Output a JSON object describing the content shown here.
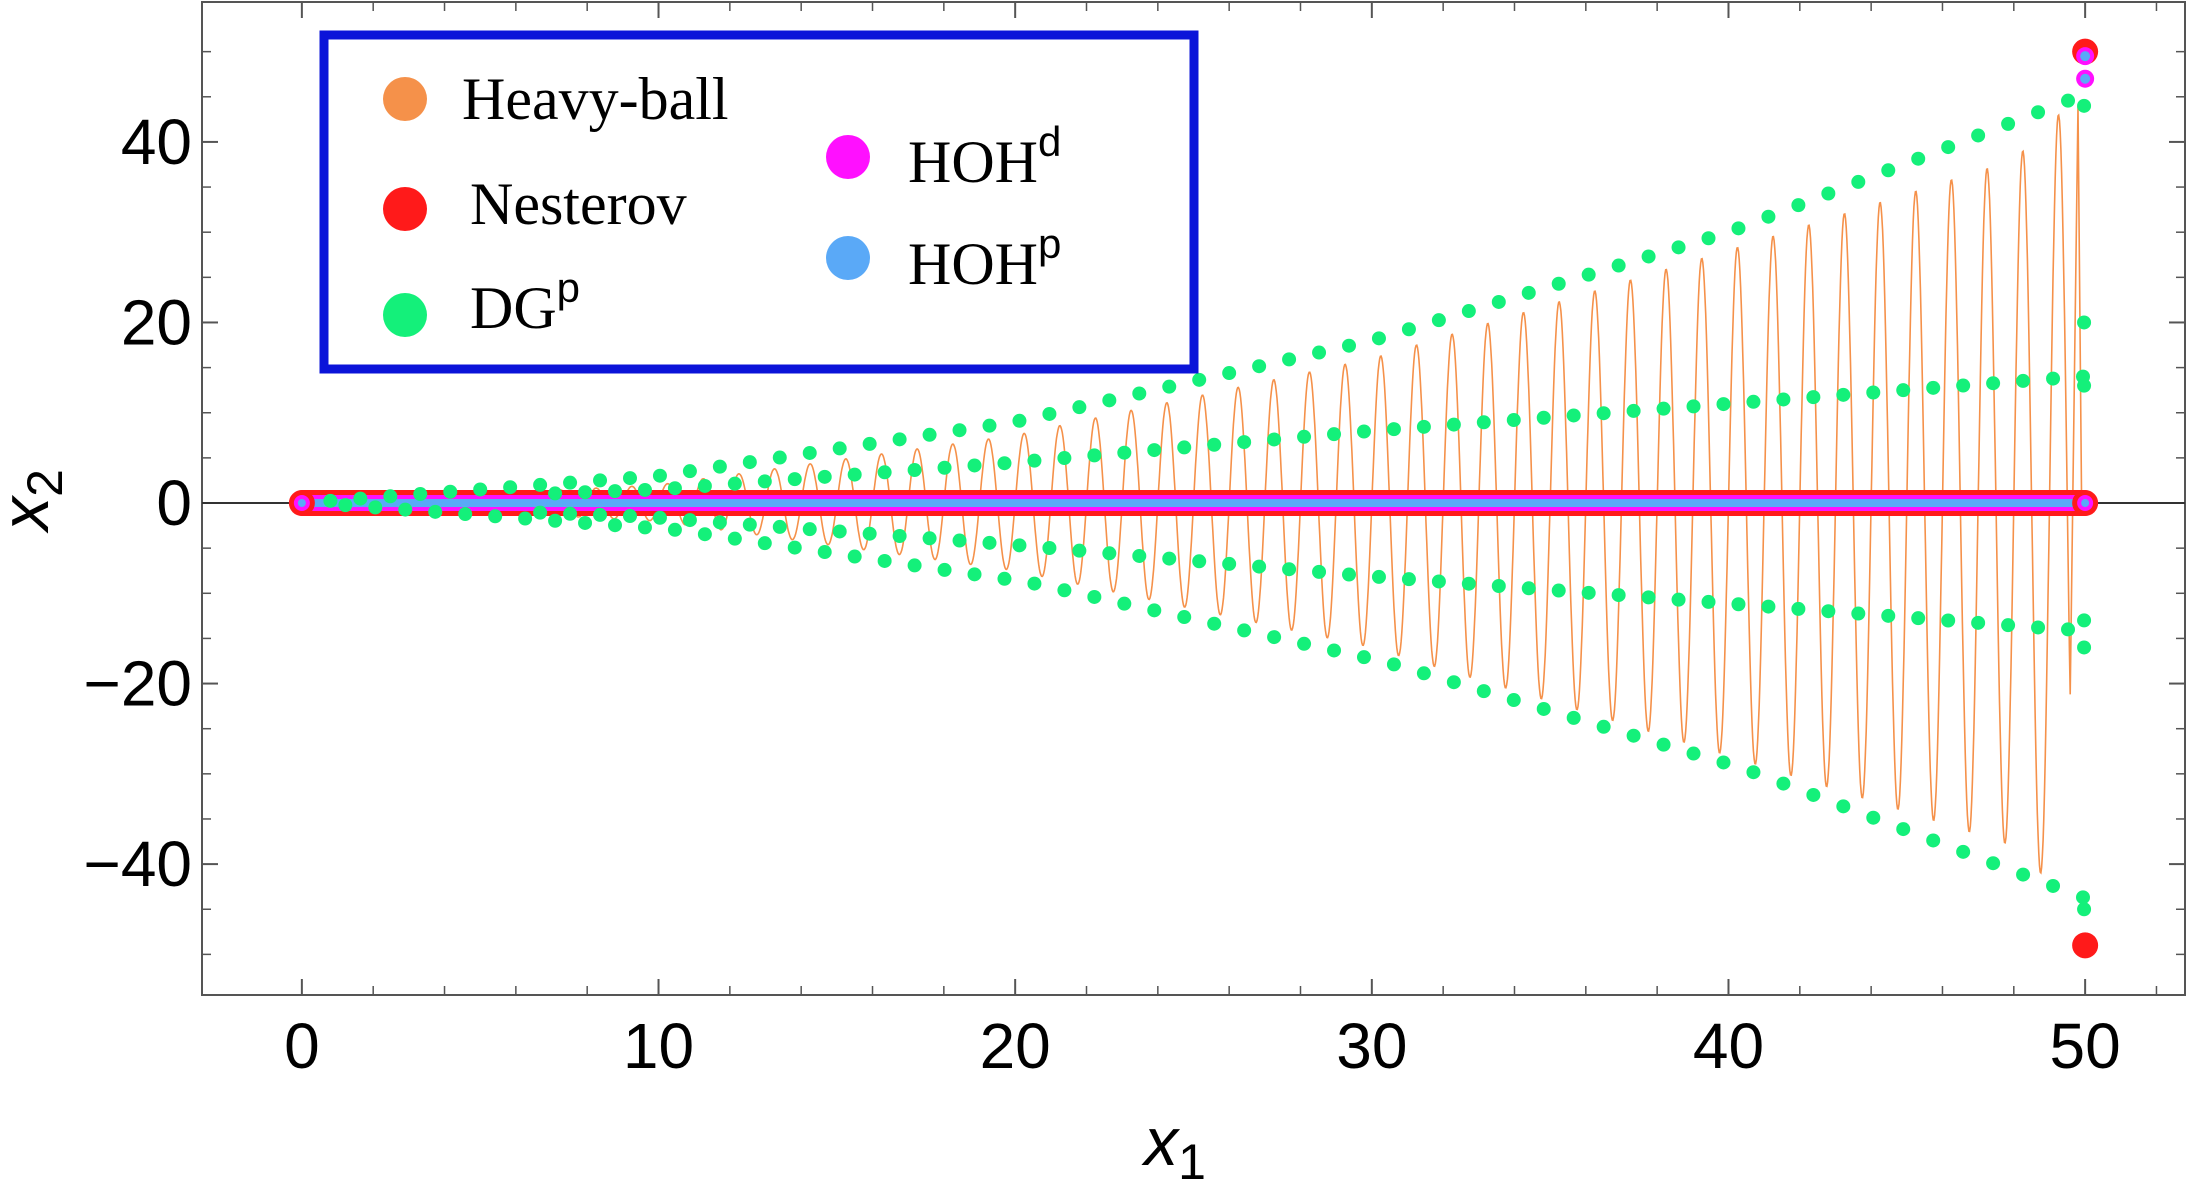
{
  "chart_data": {
    "type": "scatter",
    "xlabel": "x",
    "xlabel_sub": "1",
    "ylabel": "x",
    "ylabel_sub": "2",
    "xlim": [
      -2.8,
      52.8
    ],
    "ylim": [
      -54.5,
      55.5
    ],
    "x_ticks": [
      0,
      10,
      20,
      30,
      40,
      50
    ],
    "y_ticks": [
      -40,
      -20,
      0,
      20,
      40
    ],
    "x_tick_labels": [
      "0",
      "10",
      "20",
      "30",
      "40",
      "50"
    ],
    "y_tick_labels": [
      "−40",
      "−20",
      "0",
      "20",
      "40"
    ],
    "grid": false,
    "legend_position": "top-left",
    "legend_border_color": "#0b14d9",
    "colors": {
      "heavy_ball": "#f5914a",
      "nesterov": "#ff1a1a",
      "dg_p": "#14f07a",
      "hoh_d": "#ff10ff",
      "hoh_p": "#5aa9f7"
    },
    "series": [
      {
        "key": "heavy_ball",
        "name": "Heavy-ball",
        "style": "line",
        "description_envelope": {
          "x": [
            0,
            10,
            20,
            30,
            40,
            48,
            49.5
          ],
          "amplitude": [
            0,
            2,
            7.5,
            16,
            28,
            38,
            44
          ]
        },
        "oscillation_period_x1": 1.0
      },
      {
        "key": "nesterov",
        "name": "Nesterov",
        "style": "points",
        "x": [
          0,
          50,
          50,
          50
        ],
        "y": [
          0,
          0,
          50,
          -49
        ]
      },
      {
        "key": "dg_p",
        "name": "DG",
        "name_sup": "p",
        "style": "points",
        "outer_envelope": {
          "x": [
            0,
            10,
            20,
            30,
            40,
            49.8
          ],
          "y": [
            0,
            3,
            9,
            18,
            30,
            45
          ]
        },
        "inner_envelope": {
          "x": [
            0,
            10,
            20,
            30,
            40,
            49.8
          ],
          "y": [
            0,
            1.5,
            4.5,
            8,
            11,
            14
          ]
        }
      },
      {
        "key": "hoh_d",
        "name": "HOH",
        "name_sup": "d",
        "style": "points",
        "x": [
          0,
          50,
          50
        ],
        "y": [
          0,
          0,
          47
        ]
      },
      {
        "key": "hoh_p",
        "name": "HOH",
        "name_sup": "p",
        "style": "points",
        "x": [
          0,
          50,
          50
        ],
        "y": [
          0,
          0,
          49.5
        ]
      }
    ]
  }
}
